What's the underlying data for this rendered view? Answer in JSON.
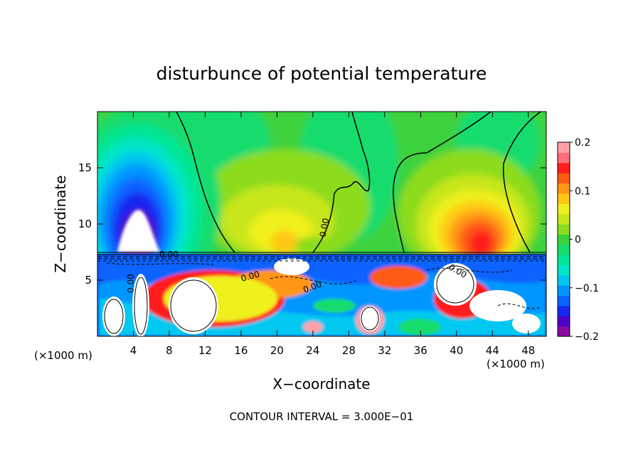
{
  "chart_data": {
    "type": "heatmap",
    "title": "disturbunce of potential temperature",
    "xlabel": "X−coordinate",
    "ylabel": "Z−coordinate",
    "x_unit_left": "(×1000 m)",
    "x_unit_right": "(×1000 m)",
    "footer": "CONTOUR INTERVAL = 3.000E−01",
    "xlim": [
      0,
      50
    ],
    "ylim": [
      0,
      20
    ],
    "x_ticks": [
      4,
      8,
      12,
      16,
      20,
      24,
      28,
      32,
      36,
      40,
      44,
      48
    ],
    "y_ticks": [
      5,
      10,
      15
    ],
    "colorbar": {
      "range": [
        -0.2,
        0.2
      ],
      "ticks": [
        {
          "value": 0.2,
          "label": "0.2"
        },
        {
          "value": 0.1,
          "label": "0.1"
        },
        {
          "value": 0,
          "label": "0"
        },
        {
          "value": -0.1,
          "label": "−0.1"
        },
        {
          "value": -0.2,
          "label": "−0.2"
        }
      ],
      "colors": [
        "#8a0aa0",
        "#5000c8",
        "#1428f0",
        "#0a64ff",
        "#0096ff",
        "#00c8f0",
        "#00e6c8",
        "#00e696",
        "#14dc6e",
        "#3cd23c",
        "#8cdc1e",
        "#c8e61e",
        "#f0f01e",
        "#ffc814",
        "#ff9614",
        "#ff5a14",
        "#ff1e1e",
        "#ff6e7a",
        "#ffa0a8"
      ]
    },
    "contour_labels": [
      {
        "x": 26,
        "z": 10.3,
        "text": "0.00"
      },
      {
        "x": 6.5,
        "z": 7.3,
        "text": "0.00"
      },
      {
        "x": 17.5,
        "z": 5.6,
        "text": "0.00"
      },
      {
        "x": 24.5,
        "z": 4.8,
        "text": "0.00"
      },
      {
        "x": 4.2,
        "z": 5.3,
        "text": "0.00"
      },
      {
        "x": 42,
        "z": 5.6,
        "text": "0.00"
      }
    ],
    "features": [
      {
        "name": "cold-anomaly-left",
        "x": 4.7,
        "z": 10.5,
        "value": -0.2
      },
      {
        "name": "warm-anomaly-right",
        "x": 42.5,
        "z": 9.2,
        "value": 0.14
      },
      {
        "name": "warm-anomaly-center",
        "x": 22,
        "z": 11,
        "value": 0.07
      }
    ]
  }
}
